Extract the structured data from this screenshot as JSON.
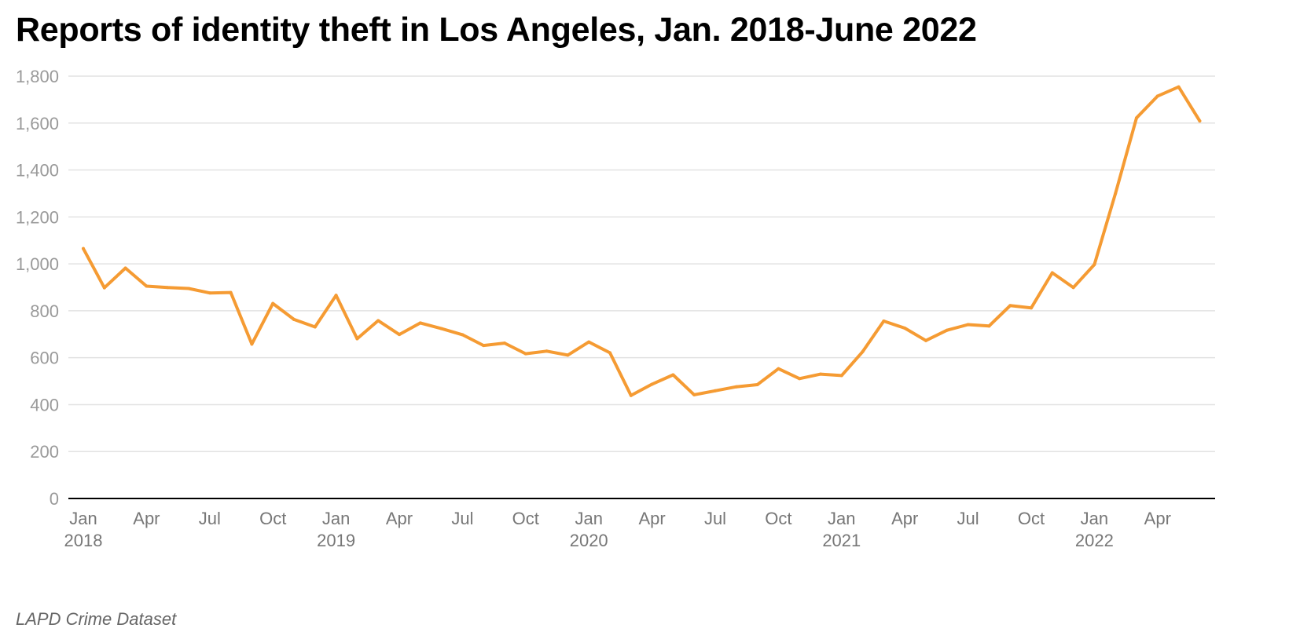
{
  "title": "Reports of identity theft in Los Angeles, Jan. 2018-June 2022",
  "source": "LAPD Crime Dataset",
  "colors": {
    "line": "#f59b33",
    "grid": "#e2e2e2",
    "axis": "#000000",
    "y_tick_text": "#9a9a9a",
    "x_tick_text": "#777777"
  },
  "chart_data": {
    "type": "line",
    "title": "Reports of identity theft in Los Angeles, Jan. 2018-June 2022",
    "xlabel": "",
    "ylabel": "",
    "ylim": [
      0,
      1800
    ],
    "yticks": [
      0,
      200,
      400,
      600,
      800,
      1000,
      1200,
      1400,
      1600,
      1800
    ],
    "ytick_labels": [
      "0",
      "200",
      "400",
      "600",
      "800",
      "1,000",
      "1,200",
      "1,400",
      "1,600",
      "1,800"
    ],
    "x_tick_labels": [
      {
        "month": "Jan",
        "year": "2018",
        "index": 0
      },
      {
        "month": "Apr",
        "year": "",
        "index": 3
      },
      {
        "month": "Jul",
        "year": "",
        "index": 6
      },
      {
        "month": "Oct",
        "year": "",
        "index": 9
      },
      {
        "month": "Jan",
        "year": "2019",
        "index": 12
      },
      {
        "month": "Apr",
        "year": "",
        "index": 15
      },
      {
        "month": "Jul",
        "year": "",
        "index": 18
      },
      {
        "month": "Oct",
        "year": "",
        "index": 21
      },
      {
        "month": "Jan",
        "year": "2020",
        "index": 24
      },
      {
        "month": "Apr",
        "year": "",
        "index": 27
      },
      {
        "month": "Jul",
        "year": "",
        "index": 30
      },
      {
        "month": "Oct",
        "year": "",
        "index": 33
      },
      {
        "month": "Jan",
        "year": "2021",
        "index": 36
      },
      {
        "month": "Apr",
        "year": "",
        "index": 39
      },
      {
        "month": "Jul",
        "year": "",
        "index": 42
      },
      {
        "month": "Oct",
        "year": "",
        "index": 45
      },
      {
        "month": "Jan",
        "year": "2022",
        "index": 48
      },
      {
        "month": "Apr",
        "year": "",
        "index": 51
      }
    ],
    "grid": true,
    "x": [
      "2018-01",
      "2018-02",
      "2018-03",
      "2018-04",
      "2018-05",
      "2018-06",
      "2018-07",
      "2018-08",
      "2018-09",
      "2018-10",
      "2018-11",
      "2018-12",
      "2019-01",
      "2019-02",
      "2019-03",
      "2019-04",
      "2019-05",
      "2019-06",
      "2019-07",
      "2019-08",
      "2019-09",
      "2019-10",
      "2019-11",
      "2019-12",
      "2020-01",
      "2020-02",
      "2020-03",
      "2020-04",
      "2020-05",
      "2020-06",
      "2020-07",
      "2020-08",
      "2020-09",
      "2020-10",
      "2020-11",
      "2020-12",
      "2021-01",
      "2021-02",
      "2021-03",
      "2021-04",
      "2021-05",
      "2021-06",
      "2021-07",
      "2021-08",
      "2021-09",
      "2021-10",
      "2021-11",
      "2021-12",
      "2022-01",
      "2022-02",
      "2022-03",
      "2022-04",
      "2022-05",
      "2022-06"
    ],
    "series": [
      {
        "values": [
          1065,
          898,
          982,
          905,
          899,
          895,
          876,
          878,
          658,
          831,
          763,
          731,
          866,
          681,
          758,
          699,
          748,
          724,
          698,
          652,
          662,
          617,
          628,
          611,
          667,
          621,
          439,
          487,
          527,
          442,
          459,
          476,
          485,
          553,
          511,
          530,
          524,
          626,
          756,
          726,
          673,
          717,
          741,
          735,
          822,
          812,
          962,
          899,
          997,
          1300,
          1622,
          1715,
          1754,
          1609
        ]
      }
    ]
  }
}
